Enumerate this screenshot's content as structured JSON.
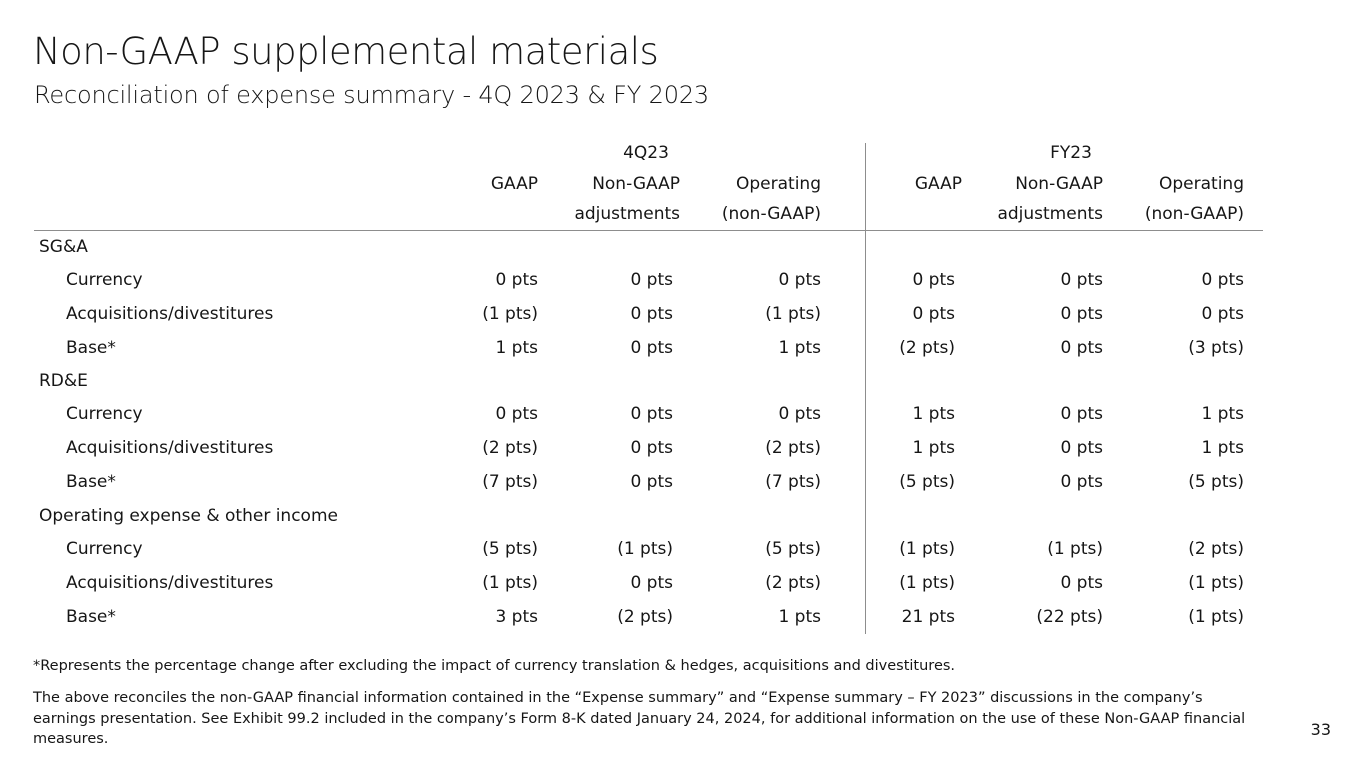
{
  "title": "Non-GAAP supplemental materials",
  "subtitle": "Reconciliation of expense summary - 4Q 2023 & FY 2023",
  "table": {
    "groups": [
      "4Q23",
      "FY23"
    ],
    "columns": [
      {
        "line1": "GAAP",
        "line2": ""
      },
      {
        "line1": "Non-GAAP",
        "line2": "adjustments"
      },
      {
        "line1": "Operating",
        "line2": "(non-GAAP)"
      },
      {
        "line1": "GAAP",
        "line2": ""
      },
      {
        "line1": "Non-GAAP",
        "line2": "adjustments"
      },
      {
        "line1": "Operating",
        "line2": "(non-GAAP)"
      }
    ],
    "rows": [
      {
        "label": "SG&A",
        "section": true,
        "values": [
          "",
          "",
          "",
          "",
          "",
          ""
        ]
      },
      {
        "label": "Currency",
        "section": false,
        "values": [
          "0 pts",
          "0 pts",
          "0 pts",
          "0 pts",
          "0 pts",
          "0 pts"
        ]
      },
      {
        "label": "Acquisitions/divestitures",
        "section": false,
        "values": [
          "(1 pts)",
          "0 pts",
          "(1 pts)",
          "0 pts",
          "0 pts",
          "0 pts"
        ]
      },
      {
        "label": "Base*",
        "section": false,
        "values": [
          "1 pts",
          "0 pts",
          "1 pts",
          "(2 pts)",
          "0 pts",
          "(3 pts)"
        ]
      },
      {
        "label": "RD&E",
        "section": true,
        "values": [
          "",
          "",
          "",
          "",
          "",
          ""
        ]
      },
      {
        "label": "Currency",
        "section": false,
        "values": [
          "0 pts",
          "0 pts",
          "0 pts",
          "1 pts",
          "0 pts",
          "1 pts"
        ]
      },
      {
        "label": "Acquisitions/divestitures",
        "section": false,
        "values": [
          "(2 pts)",
          "0 pts",
          "(2 pts)",
          "1 pts",
          "0 pts",
          "1 pts"
        ]
      },
      {
        "label": "Base*",
        "section": false,
        "values": [
          "(7 pts)",
          "0 pts",
          "(7 pts)",
          "(5 pts)",
          "0 pts",
          "(5 pts)"
        ]
      },
      {
        "label": "Operating expense & other income",
        "section": true,
        "values": [
          "",
          "",
          "",
          "",
          "",
          ""
        ]
      },
      {
        "label": "Currency",
        "section": false,
        "values": [
          "(5 pts)",
          "(1 pts)",
          "(5 pts)",
          "(1 pts)",
          "(1 pts)",
          "(2 pts)"
        ]
      },
      {
        "label": "Acquisitions/divestitures",
        "section": false,
        "values": [
          "(1 pts)",
          "0 pts",
          "(2 pts)",
          "(1 pts)",
          "0 pts",
          "(1 pts)"
        ]
      },
      {
        "label": "Base*",
        "section": false,
        "values": [
          "3 pts",
          "(2 pts)",
          "1 pts",
          "21 pts",
          "(22 pts)",
          "(1 pts)"
        ]
      }
    ]
  },
  "footnote": "*Represents the percentage change after excluding the impact of currency translation & hedges, acquisitions and divestitures.",
  "note": "The above reconciles the non-GAAP financial information contained in the “Expense summary” and “Expense summary – FY 2023” discussions in the company’s earnings presentation. See Exhibit 99.2 included in the company’s Form 8-K dated January 24, 2024, for additional information on the use of these Non-GAAP financial measures.",
  "page_number": "33"
}
